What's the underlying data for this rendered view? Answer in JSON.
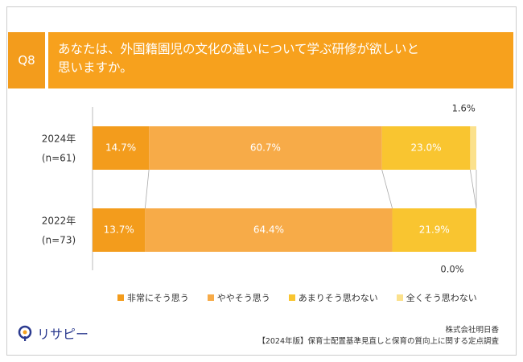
{
  "question": {
    "number": "Q8",
    "title_line1": "あなたは、外国籍園児の文化の違いについて学ぶ研修が欲しいと",
    "title_line2": "思いますか。"
  },
  "colors": {
    "background": "#ffffff",
    "header_dark": "#f39c1c",
    "header_light": "#f7a11d",
    "brand": "#2b3a8f"
  },
  "chart_data": {
    "type": "bar",
    "orientation": "horizontal",
    "stacked": true,
    "unit": "%",
    "categories": [
      {
        "label": "2024年",
        "sublabel": "(n=61)"
      },
      {
        "label": "2022年",
        "sublabel": "(n=73)"
      }
    ],
    "series": [
      {
        "name": "非常にそう思う",
        "color": "#f39c1c",
        "values": [
          14.7,
          13.7
        ],
        "labels": [
          "14.7%",
          "13.7%"
        ]
      },
      {
        "name": "ややそう思う",
        "color": "#f7ab48",
        "values": [
          60.7,
          64.4
        ],
        "labels": [
          "60.7%",
          "64.4%"
        ]
      },
      {
        "name": "あまりそう思わない",
        "color": "#f9c530",
        "values": [
          23.0,
          21.9
        ],
        "labels": [
          "23.0%",
          "21.9%"
        ]
      },
      {
        "name": "全くそう思わない",
        "color": "#fbe18c",
        "values": [
          1.6,
          0.0
        ],
        "labels": [
          "1.6%",
          "0.0%"
        ]
      }
    ],
    "xlim": [
      0,
      100
    ],
    "legend_position": "bottom"
  },
  "footer": {
    "logo_text": "リサピー",
    "company": "株式会社明日香",
    "survey": "【2024年版】保育士配置基準見直しと保育の質向上に関する定点調査"
  }
}
